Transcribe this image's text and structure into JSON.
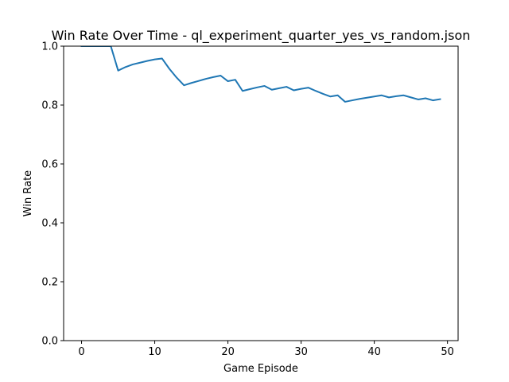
{
  "chart_data": {
    "type": "line",
    "title": "Win Rate Over Time - ql_experiment_quarter_yes_vs_random.json",
    "xlabel": "Game Episode",
    "ylabel": "Win Rate",
    "xlim": [
      -2.45,
      51.45
    ],
    "ylim": [
      0.0,
      1.0
    ],
    "xticks": [
      0,
      10,
      20,
      30,
      40,
      50
    ],
    "yticks": [
      0.0,
      0.2,
      0.4,
      0.6,
      0.8,
      1.0
    ],
    "xtick_labels": [
      "0",
      "10",
      "20",
      "30",
      "40",
      "50"
    ],
    "ytick_labels": [
      "0.0",
      "0.2",
      "0.4",
      "0.6",
      "0.8",
      "1.0"
    ],
    "grid": false,
    "series": [
      {
        "color": "#1f77b4",
        "x": [
          0,
          1,
          2,
          3,
          4,
          5,
          6,
          7,
          8,
          9,
          10,
          11,
          12,
          13,
          14,
          15,
          16,
          17,
          18,
          19,
          20,
          21,
          22,
          23,
          24,
          25,
          26,
          27,
          28,
          29,
          30,
          31,
          32,
          33,
          34,
          35,
          36,
          37,
          38,
          39,
          40,
          41,
          42,
          43,
          44,
          45,
          46,
          47,
          48,
          49
        ],
        "y": [
          1.0,
          1.0,
          1.0,
          1.0,
          1.0,
          0.917,
          0.929,
          0.938,
          0.944,
          0.95,
          0.955,
          0.958,
          0.923,
          0.893,
          0.867,
          0.875,
          0.882,
          0.889,
          0.895,
          0.9,
          0.881,
          0.886,
          0.848,
          0.854,
          0.86,
          0.865,
          0.852,
          0.857,
          0.862,
          0.85,
          0.855,
          0.859,
          0.848,
          0.838,
          0.829,
          0.833,
          0.811,
          0.816,
          0.821,
          0.825,
          0.829,
          0.833,
          0.826,
          0.83,
          0.833,
          0.826,
          0.819,
          0.823,
          0.816,
          0.82
        ]
      }
    ]
  }
}
